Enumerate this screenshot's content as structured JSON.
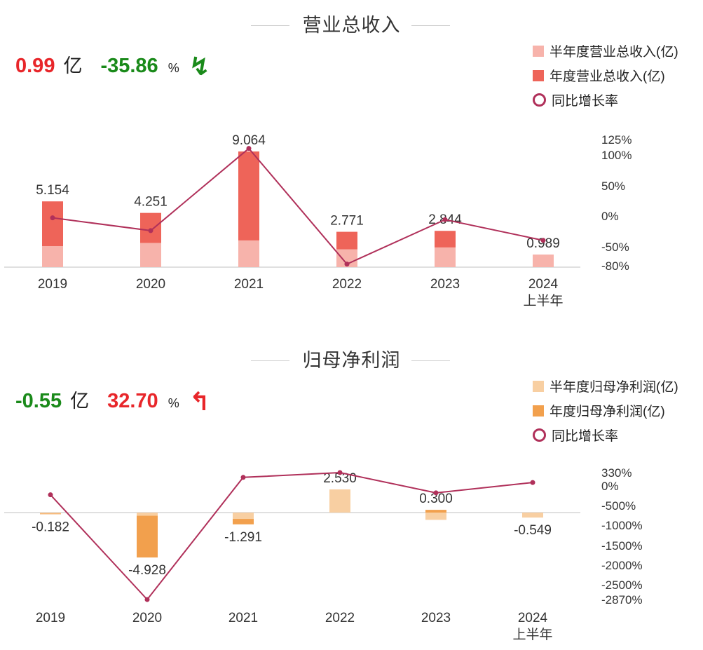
{
  "revenue": {
    "title": "营业总收入",
    "kpi": {
      "value": "0.99",
      "unit": "亿",
      "growth": "-35.86",
      "growth_unit": "%",
      "direction": "down",
      "value_color": "#e8262a",
      "growth_color": "#1a8a1a"
    },
    "legend": [
      "半年度营业总收入(亿)",
      "年度营业总收入(亿)",
      "同比增长率"
    ],
    "colors": {
      "half": "#f7b3ab",
      "annual": "#ee6459",
      "line": "#b0305a"
    },
    "chart_data": {
      "type": "bar",
      "categories": [
        "2019",
        "2020",
        "2021",
        "2022",
        "2023",
        "2024"
      ],
      "category_sublabels": [
        "",
        "",
        "",
        "",
        "",
        "上半年"
      ],
      "series": [
        {
          "name": "年度营业总收入(亿)",
          "values": [
            5.154,
            4.251,
            9.064,
            2.771,
            2.844,
            null
          ]
        },
        {
          "name": "半年度营业总收入(亿)",
          "values": [
            1.65,
            1.9,
            2.1,
            1.4,
            1.55,
            0.989
          ]
        },
        {
          "name": "同比增长率",
          "values": [
            1,
            -20,
            115,
            -75,
            -2,
            -36
          ]
        }
      ],
      "bar_labels": [
        "5.154",
        "4.251",
        "9.064",
        "2.771",
        "2.844",
        "0.989"
      ],
      "y_ticks": [
        "125%",
        "100%",
        "50%",
        "0%",
        "-50%",
        "-80%"
      ],
      "y_range_pct": [
        -80,
        125
      ]
    }
  },
  "profit": {
    "title": "归母净利润",
    "kpi": {
      "value": "-0.55",
      "unit": "亿",
      "growth": "32.70",
      "growth_unit": "%",
      "direction": "up",
      "value_color": "#1a8a1a",
      "growth_color": "#e8262a"
    },
    "legend": [
      "半年度归母净利润(亿)",
      "年度归母净利润(亿)",
      "同比增长率"
    ],
    "colors": {
      "half": "#f8cfa2",
      "annual": "#f2a04d",
      "line": "#b0305a"
    },
    "chart_data": {
      "type": "bar",
      "categories": [
        "2019",
        "2020",
        "2021",
        "2022",
        "2023",
        "2024"
      ],
      "category_sublabels": [
        "",
        "",
        "",
        "",
        "",
        "上半年"
      ],
      "series": [
        {
          "name": "年度归母净利润(亿)",
          "values": [
            -0.182,
            -4.928,
            -1.291,
            2.53,
            0.3,
            null
          ]
        },
        {
          "name": "半年度归母净利润(亿)",
          "values": [
            -0.05,
            -0.35,
            -0.7,
            2.53,
            -0.8,
            -0.549
          ]
        },
        {
          "name": "同比增长率",
          "values": [
            -230,
            -2870,
            210,
            330,
            -180,
            80
          ]
        }
      ],
      "bar_labels": [
        "-0.182",
        "-4.928",
        "-1.291",
        "2.530",
        "0.300",
        "-0.549"
      ],
      "y_ticks": [
        "330%",
        "0%",
        "-500%",
        "-1000%",
        "-1500%",
        "-2000%",
        "-2500%",
        "-2870%"
      ],
      "y_range_pct": [
        -2870,
        330
      ]
    }
  }
}
